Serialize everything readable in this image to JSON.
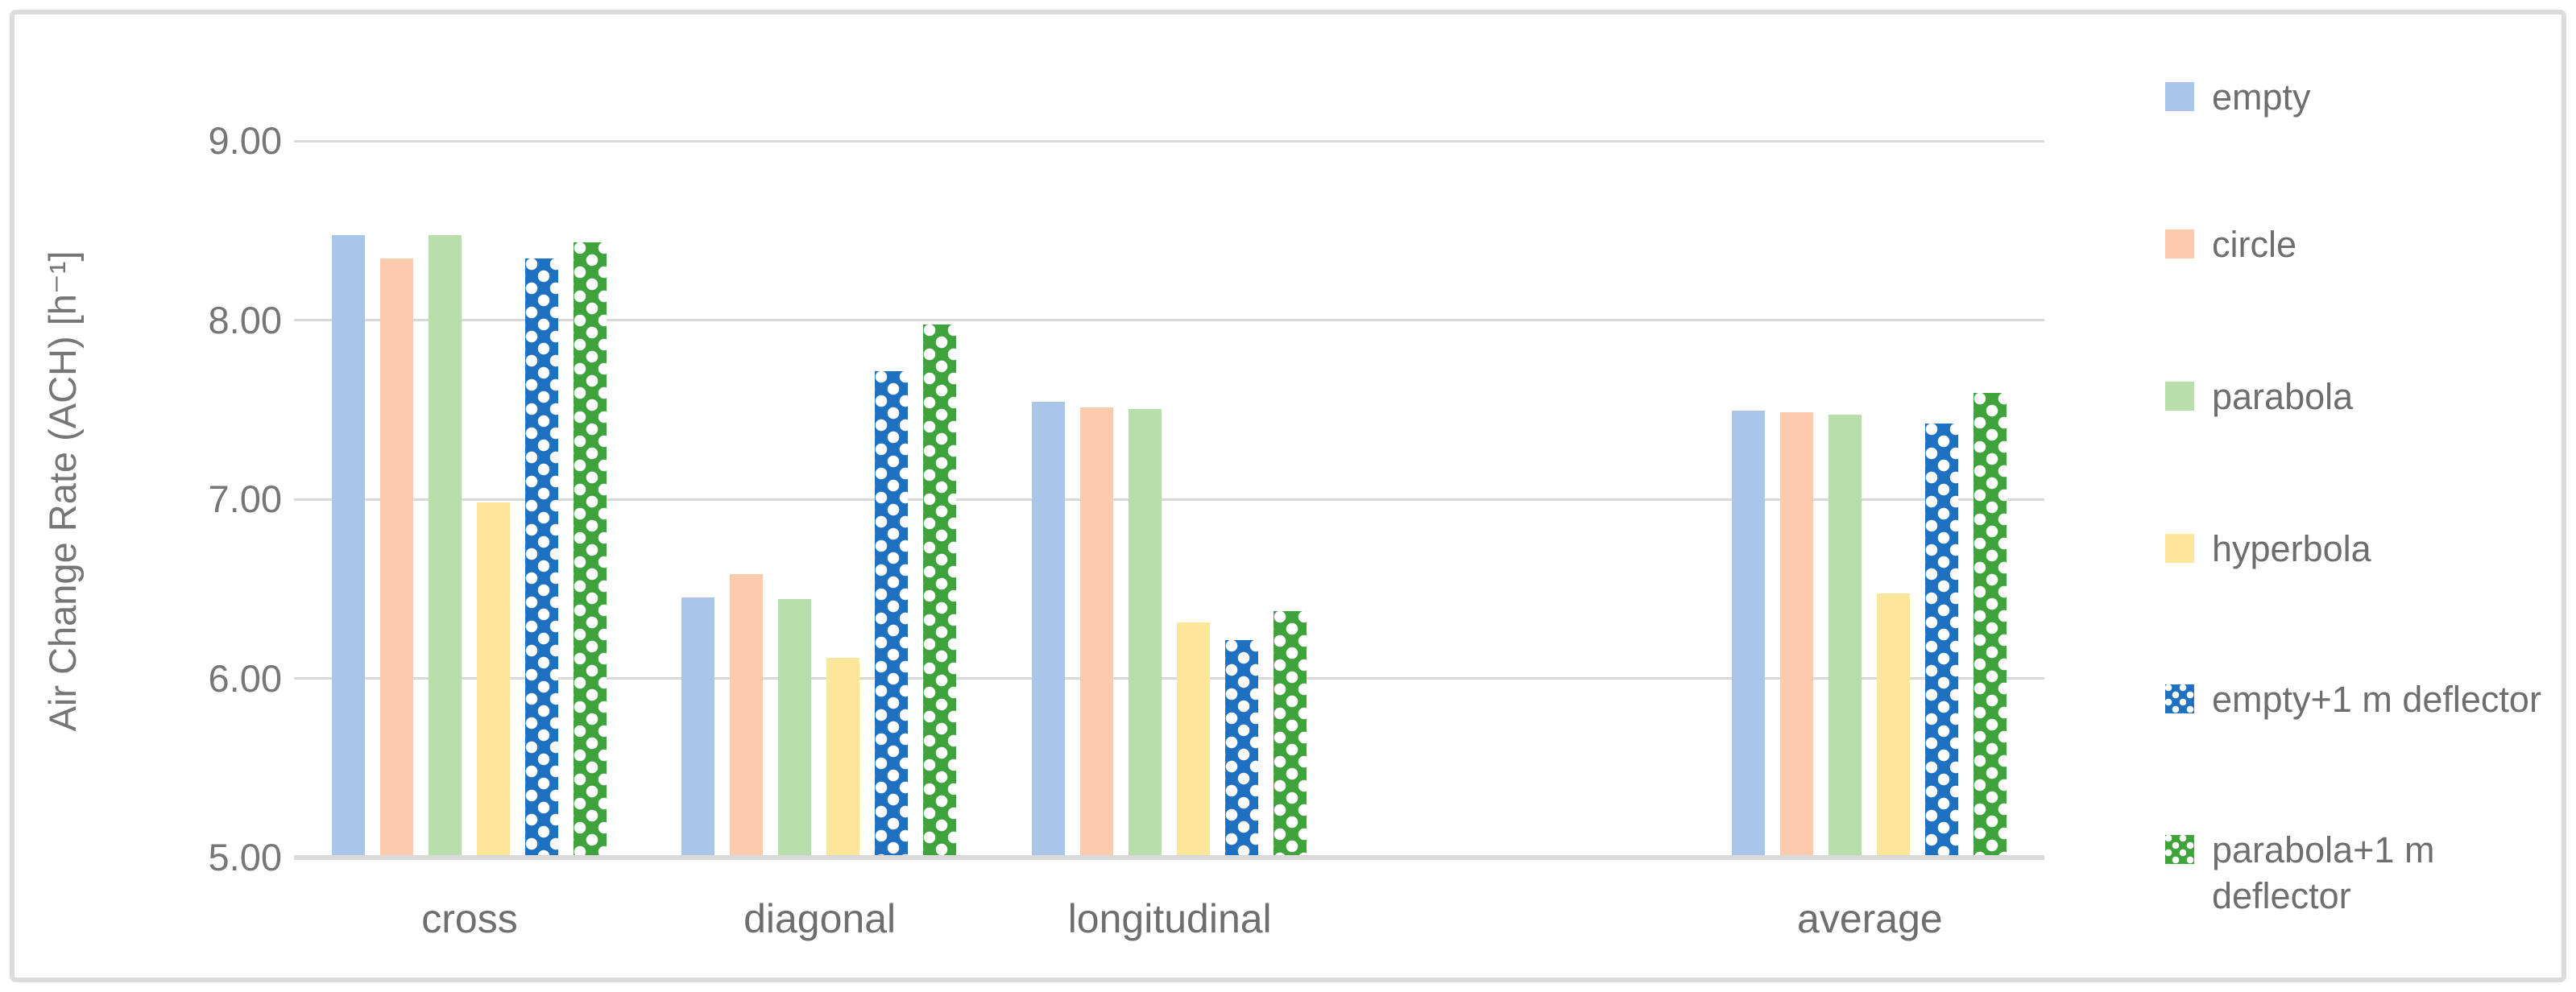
{
  "chart_data": {
    "type": "bar",
    "title": "",
    "ylabel": "Air Change Rate (ACH) [h⁻¹]",
    "xlabel": "",
    "categories": [
      "cross",
      "diagonal",
      "longitudinal",
      "",
      "average"
    ],
    "series": [
      {
        "name": "empty",
        "color": "#A9C6E8",
        "pattern": "solid",
        "values": [
          8.46,
          6.44,
          7.53,
          null,
          7.48
        ]
      },
      {
        "name": "circle",
        "color": "#FCCBAD",
        "pattern": "solid",
        "values": [
          8.33,
          6.57,
          7.5,
          null,
          7.47
        ]
      },
      {
        "name": "parabola",
        "color": "#B8DEAC",
        "pattern": "solid",
        "values": [
          8.46,
          6.43,
          7.49,
          null,
          7.46
        ]
      },
      {
        "name": "hyperbola",
        "color": "#FBE699",
        "pattern": "solid",
        "values": [
          6.97,
          6.1,
          6.3,
          null,
          6.46
        ]
      },
      {
        "name": "empty+1 m deflector",
        "color": "#1E70C1",
        "pattern": "dots",
        "values": [
          8.33,
          7.7,
          6.2,
          null,
          7.41
        ]
      },
      {
        "name": "parabola+1 m deflector",
        "color": "#3FA33C",
        "pattern": "dots",
        "values": [
          8.42,
          7.96,
          6.36,
          null,
          7.58
        ]
      }
    ],
    "y_ticks": [
      {
        "label": "9.00",
        "value": 9
      },
      {
        "label": "8.00",
        "value": 8
      },
      {
        "label": "7.00",
        "value": 7
      },
      {
        "label": "6.00",
        "value": 6
      },
      {
        "label": "5.00",
        "value": 5
      }
    ],
    "ylim": [
      5,
      9.6
    ],
    "grid": true,
    "legend_position": "right"
  },
  "colors": {
    "gridline": "#D9D9D9",
    "axis_line": "#D9D9D9",
    "tick_text": "#767676",
    "category_text": "#6E6E6E",
    "legend_text": "#6E6E6E",
    "frame_border": "#DBDBDB",
    "background": "#FFFFFF"
  }
}
